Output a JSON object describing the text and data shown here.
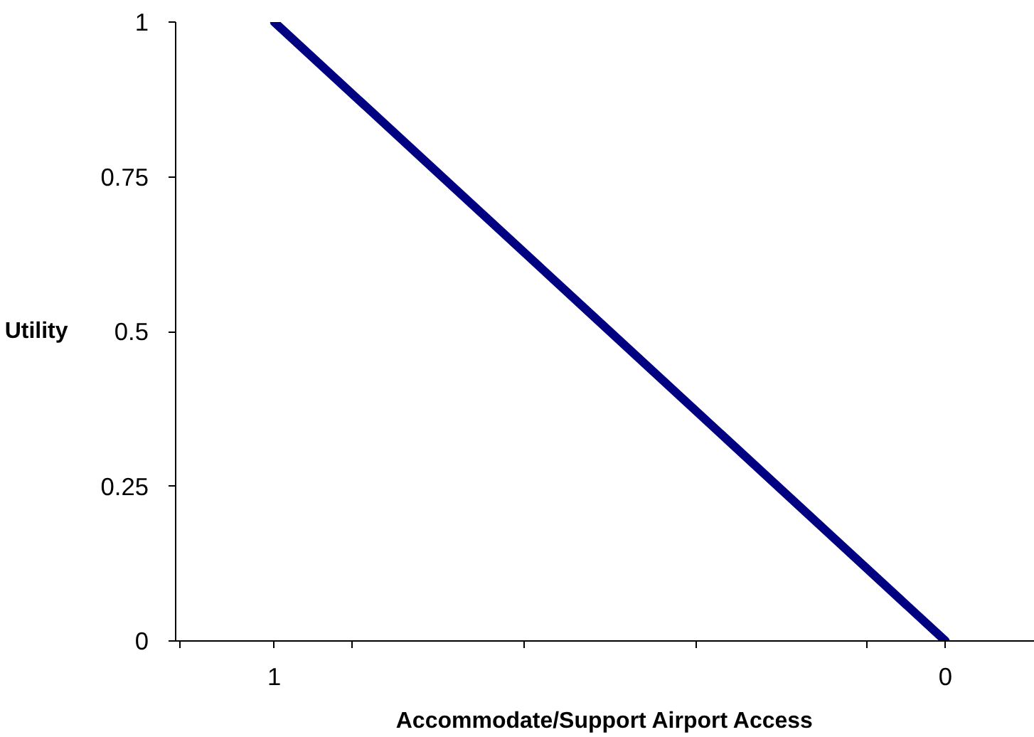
{
  "chart_data": {
    "type": "line",
    "xlabel": "Accommodate/Support Airport Access",
    "ylabel": "Utility",
    "x": [
      1,
      0
    ],
    "series": [
      {
        "color": "#000080",
        "values": [
          1,
          0
        ]
      }
    ],
    "xlim": [
      1.147,
      -0.133
    ],
    "xticks": [
      {
        "value": 1.14,
        "label": null
      },
      {
        "value": 1,
        "label": "1"
      },
      {
        "value": 0.885,
        "label": null
      },
      {
        "value": 0.628,
        "label": null
      },
      {
        "value": 0.372,
        "label": null
      },
      {
        "value": 0.117,
        "label": null
      },
      {
        "value": 0,
        "label": "0"
      }
    ],
    "ylim": [
      0,
      1
    ],
    "yticks": [
      0,
      0.25,
      0.5,
      0.75,
      1
    ],
    "line_style": "solid"
  }
}
